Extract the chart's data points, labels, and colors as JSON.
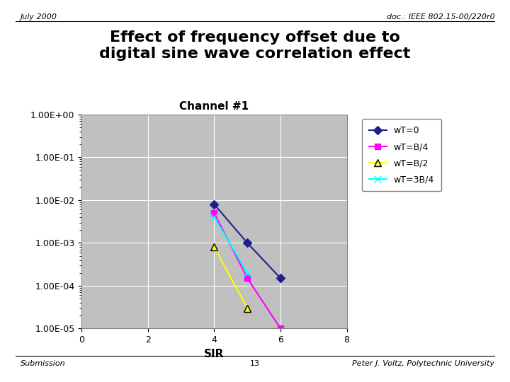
{
  "title_line1": "Effect of frequency offset due to",
  "title_line2": "digital sine wave correlation effect",
  "header_left": "July 2000",
  "header_right": "doc.: IEEE 802.15-00/220r0",
  "footer_left": "Submission",
  "footer_center": "13",
  "footer_right": "Peter J. Voltz, Polytechnic University",
  "chart_title": "Channel #1",
  "xlabel": "SIR",
  "xlim": [
    0,
    8
  ],
  "xticks": [
    0,
    2,
    4,
    6,
    8
  ],
  "series": [
    {
      "label": "wT=0",
      "color": "#1F1F8B",
      "marker": "D",
      "markersize": 6,
      "x": [
        4,
        5,
        6
      ],
      "y": [
        0.008,
        0.001,
        0.00015
      ]
    },
    {
      "label": "wT=B/4",
      "color": "#FF00FF",
      "marker": "s",
      "markersize": 6,
      "x": [
        4,
        5,
        6
      ],
      "y": [
        0.005,
        0.00015,
        1e-05
      ]
    },
    {
      "label": "wT=B/2",
      "color": "#FFFF00",
      "marker": "^",
      "markersize": 7,
      "x": [
        4,
        5
      ],
      "y": [
        0.0008,
        3e-05
      ]
    },
    {
      "label": "wT=3B/4",
      "color": "#00FFFF",
      "marker": "x",
      "markersize": 7,
      "x": [
        4,
        5
      ],
      "y": [
        0.004,
        0.0002
      ]
    }
  ],
  "plot_bg_color": "#C0C0C0",
  "outer_bg_color": "#FFFFFF",
  "grid_color": "#FFFFFF",
  "legend_bg": "#FFFFFF",
  "legend_edge": "#808080"
}
